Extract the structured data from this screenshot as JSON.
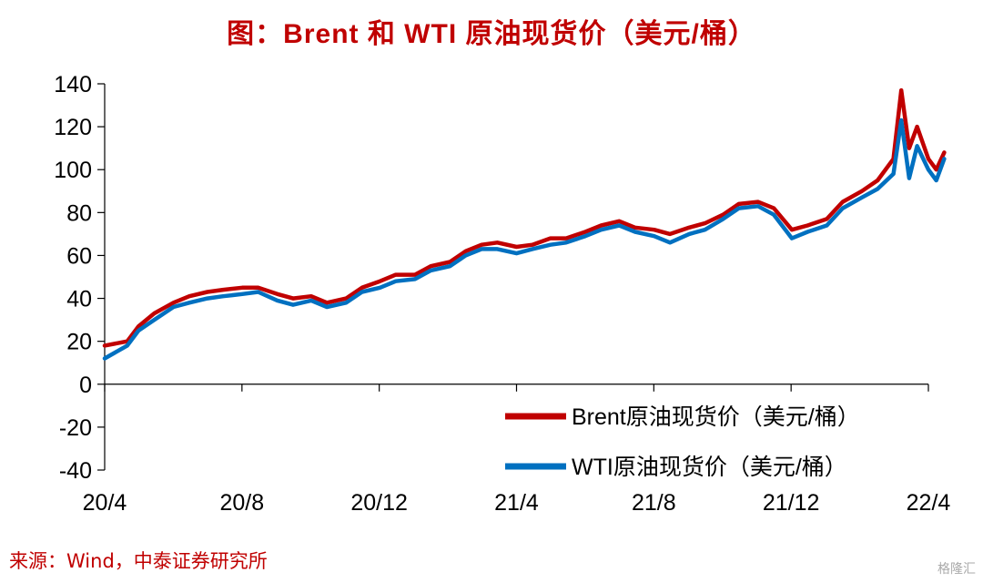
{
  "title": "图：Brent 和 WTI 原油现货价（美元/桶）",
  "source": "来源：Wind，中泰证券研究所",
  "watermark": "格隆汇",
  "chart_data": {
    "type": "line",
    "title": "图：Brent 和 WTI 原油现货价（美元/桶）",
    "ylim": [
      -40,
      140
    ],
    "yticks": [
      "140",
      "120",
      "100",
      "80",
      "60",
      "40",
      "20",
      "0",
      "-20",
      "-40"
    ],
    "xlim": [
      "2020-04",
      "2022-04"
    ],
    "xticks": [
      "20/4",
      "20/8",
      "20/12",
      "21/4",
      "21/8",
      "21/12",
      "22/4"
    ],
    "legend_position": "bottom-right",
    "grid": false,
    "series": [
      {
        "name": "Brent原油现货价（美元/桶）",
        "color": "#c00000",
        "x": [
          "2020-04-01",
          "2020-04-21",
          "2020-05-01",
          "2020-05-15",
          "2020-06-01",
          "2020-06-15",
          "2020-07-01",
          "2020-07-15",
          "2020-08-01",
          "2020-08-15",
          "2020-09-01",
          "2020-09-15",
          "2020-10-01",
          "2020-10-15",
          "2020-11-01",
          "2020-11-15",
          "2020-12-01",
          "2020-12-15",
          "2021-01-01",
          "2021-01-15",
          "2021-02-01",
          "2021-02-15",
          "2021-03-01",
          "2021-03-15",
          "2021-04-01",
          "2021-04-15",
          "2021-05-01",
          "2021-05-15",
          "2021-06-01",
          "2021-06-15",
          "2021-07-01",
          "2021-07-15",
          "2021-08-01",
          "2021-08-15",
          "2021-09-01",
          "2021-09-15",
          "2021-10-01",
          "2021-10-15",
          "2021-11-01",
          "2021-11-15",
          "2021-12-01",
          "2021-12-15",
          "2022-01-01",
          "2022-01-15",
          "2022-02-01",
          "2022-02-15",
          "2022-03-01",
          "2022-03-08",
          "2022-03-15",
          "2022-03-22",
          "2022-04-01",
          "2022-04-08",
          "2022-04-15"
        ],
        "values": [
          18,
          20,
          27,
          33,
          38,
          41,
          43,
          44,
          45,
          45,
          42,
          40,
          41,
          38,
          40,
          45,
          48,
          51,
          51,
          55,
          57,
          62,
          65,
          66,
          64,
          65,
          68,
          68,
          71,
          74,
          76,
          73,
          72,
          70,
          73,
          75,
          79,
          84,
          85,
          82,
          72,
          74,
          77,
          85,
          90,
          95,
          105,
          137,
          110,
          120,
          105,
          100,
          108
        ]
      },
      {
        "name": "WTI原油现货价（美元/桶）",
        "color": "#0070c0",
        "x": [
          "2020-04-01",
          "2020-04-21",
          "2020-05-01",
          "2020-05-15",
          "2020-06-01",
          "2020-06-15",
          "2020-07-01",
          "2020-07-15",
          "2020-08-01",
          "2020-08-15",
          "2020-09-01",
          "2020-09-15",
          "2020-10-01",
          "2020-10-15",
          "2020-11-01",
          "2020-11-15",
          "2020-12-01",
          "2020-12-15",
          "2021-01-01",
          "2021-01-15",
          "2021-02-01",
          "2021-02-15",
          "2021-03-01",
          "2021-03-15",
          "2021-04-01",
          "2021-04-15",
          "2021-05-01",
          "2021-05-15",
          "2021-06-01",
          "2021-06-15",
          "2021-07-01",
          "2021-07-15",
          "2021-08-01",
          "2021-08-15",
          "2021-09-01",
          "2021-09-15",
          "2021-10-01",
          "2021-10-15",
          "2021-11-01",
          "2021-11-15",
          "2021-12-01",
          "2021-12-15",
          "2022-01-01",
          "2022-01-15",
          "2022-02-01",
          "2022-02-15",
          "2022-03-01",
          "2022-03-08",
          "2022-03-15",
          "2022-03-22",
          "2022-04-01",
          "2022-04-08",
          "2022-04-15"
        ],
        "values": [
          12,
          18,
          25,
          30,
          36,
          38,
          40,
          41,
          42,
          43,
          39,
          37,
          39,
          36,
          38,
          43,
          45,
          48,
          49,
          53,
          55,
          60,
          63,
          63,
          61,
          63,
          65,
          66,
          69,
          72,
          74,
          71,
          69,
          66,
          70,
          72,
          77,
          82,
          83,
          79,
          68,
          71,
          74,
          82,
          87,
          91,
          98,
          123,
          96,
          111,
          100,
          95,
          105
        ]
      }
    ]
  }
}
